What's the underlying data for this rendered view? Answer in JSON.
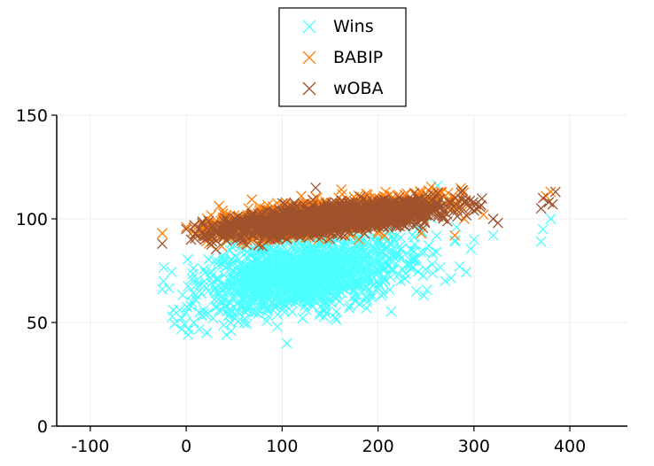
{
  "chart_data": {
    "type": "scatter",
    "title": "",
    "xlabel": "",
    "ylabel": "",
    "xlim": [
      -135,
      460
    ],
    "ylim": [
      0,
      150
    ],
    "xticks": [
      -100,
      0,
      100,
      200,
      300,
      400
    ],
    "yticks": [
      0,
      50,
      100,
      150
    ],
    "xtick_labels": [
      "-100",
      "0",
      "100",
      "200",
      "300",
      "400"
    ],
    "ytick_labels": [
      "0",
      "50",
      "100",
      "150"
    ],
    "grid": true,
    "legend_position": "top-center",
    "marker": "x",
    "series": [
      {
        "name": "Wins",
        "color": "#4dffff",
        "cluster": {
          "x_mean": 120,
          "x_sd": 55,
          "x_min": -25,
          "x_max": 320,
          "y_at_x0": 64,
          "slope": 0.075,
          "y_sd": 8.5,
          "count": 1400
        },
        "points": [
          [
            -25,
            66
          ],
          [
            5,
            58
          ],
          [
            8,
            50
          ],
          [
            28,
            52
          ],
          [
            42,
            44
          ],
          [
            62,
            55
          ],
          [
            95,
            48
          ],
          [
            105,
            40
          ],
          [
            125,
            56
          ],
          [
            170,
            57
          ],
          [
            205,
            64
          ],
          [
            240,
            65
          ],
          [
            262,
            116
          ],
          [
            270,
            70
          ],
          [
            285,
            77
          ],
          [
            300,
            90
          ],
          [
            320,
            92
          ],
          [
            370,
            89
          ],
          [
            372,
            95
          ],
          [
            380,
            100
          ]
        ]
      },
      {
        "name": "BABIP",
        "color": "#ff7f0e",
        "cluster": {
          "x_mean": 140,
          "x_sd": 60,
          "x_min": 5,
          "x_max": 300,
          "y_at_x0": 93,
          "slope": 0.055,
          "y_sd": 3.6,
          "count": 1300
        },
        "points": [
          [
            -25,
            93
          ],
          [
            0,
            96
          ],
          [
            10,
            92
          ],
          [
            120,
            111
          ],
          [
            180,
            90
          ],
          [
            200,
            93
          ],
          [
            245,
            93
          ],
          [
            280,
            92
          ],
          [
            290,
            100
          ],
          [
            310,
            102
          ],
          [
            375,
            111
          ],
          [
            380,
            113
          ]
        ]
      },
      {
        "name": "wOBA",
        "color": "#a0522d",
        "cluster": {
          "x_mean": 150,
          "x_sd": 62,
          "x_min": 5,
          "x_max": 310,
          "y_at_x0": 93,
          "slope": 0.047,
          "y_sd": 3.3,
          "count": 1500
        },
        "points": [
          [
            -25,
            88
          ],
          [
            0,
            95
          ],
          [
            5,
            90
          ],
          [
            10,
            93
          ],
          [
            135,
            115
          ],
          [
            300,
            104
          ],
          [
            320,
            100
          ],
          [
            325,
            98
          ],
          [
            370,
            105
          ],
          [
            372,
            110
          ],
          [
            378,
            108
          ],
          [
            382,
            107
          ],
          [
            385,
            113
          ]
        ]
      }
    ]
  }
}
